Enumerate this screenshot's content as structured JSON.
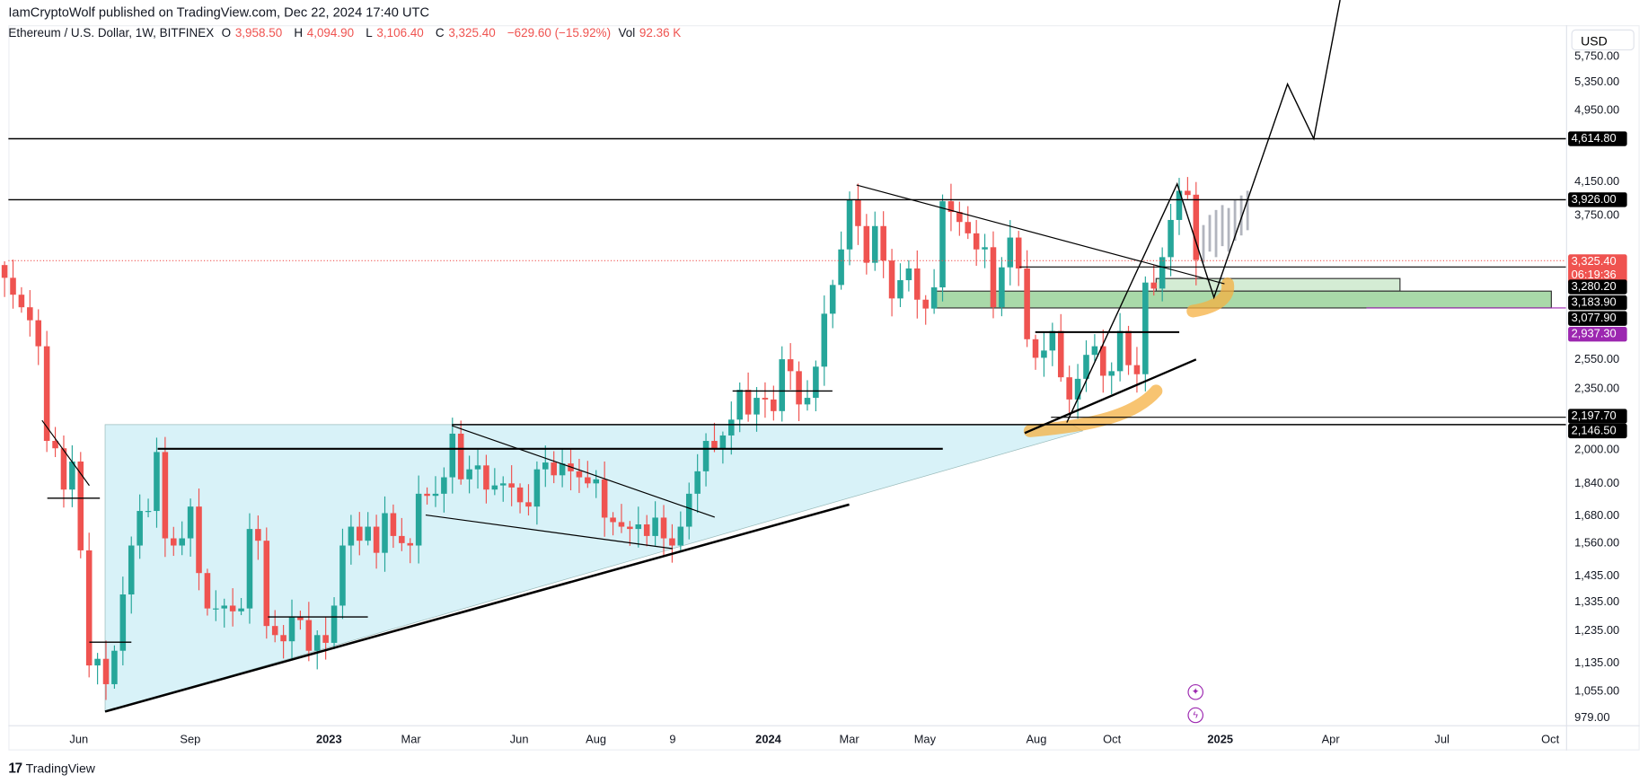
{
  "publisher_line": "IamCryptoWolf published on TradingView.com, Dec 22, 2024 17:40 UTC",
  "symbol": {
    "name": "Ethereum / U.S. Dollar, 1W, BITFINEX",
    "o_label": "O",
    "open": "3,958.50",
    "h_label": "H",
    "high": "4,094.90",
    "l_label": "L",
    "low": "3,106.40",
    "c_label": "C",
    "close": "3,325.40",
    "change": "−629.60 (−15.92%)",
    "vol_label": "Vol",
    "volume": "92.36 K"
  },
  "currency": "USD",
  "brand": "TradingView",
  "colors": {
    "up": "#26a69a",
    "down": "#ef5350",
    "tag": "#000000",
    "current": "#ef5350",
    "purple": "#9c27b0",
    "zone_light": "#d4ecd4",
    "zone_dark": "#a9d9a9",
    "triangle": "#d8f2f8",
    "highlight": "#f5b041"
  },
  "price_axis": {
    "ticks": [
      "5,750.00",
      "5,350.00",
      "4,950.00",
      "4,150.00",
      "3,750.00",
      "2,550.00",
      "2,350.00",
      "2,000.00",
      "1,840.00",
      "1,680.00",
      "1,560.00",
      "1,435.00",
      "1,335.00",
      "1,235.00",
      "1,135.00",
      "1,055.00",
      "979.00"
    ],
    "tags": [
      "4,614.80",
      "3,926.00",
      "3,280.20",
      "3,183.90",
      "3,077.90",
      "2,197.70",
      "2,146.50"
    ],
    "current_price": "3,325.40",
    "countdown": "06:19:36",
    "purple_tag": "2,937.30"
  },
  "time_axis": {
    "labels": [
      "Jun",
      "Sep",
      "2023",
      "Mar",
      "Jun",
      "Aug",
      "9",
      "2024",
      "Mar",
      "May",
      "Aug",
      "Oct",
      "2025",
      "Apr",
      "Jul",
      "Oct"
    ]
  },
  "chart_data": {
    "type": "candlestick",
    "title": "Ethereum / U.S. Dollar, 1W, BITFINEX",
    "scale": "log",
    "ylim": [
      979,
      5900
    ],
    "first_open": 3280,
    "closes": [
      3170,
      3030,
      2930,
      2830,
      2640,
      2050,
      2010,
      1800,
      1940,
      1530,
      1125,
      1145,
      1070,
      1170,
      1360,
      1550,
      1700,
      1700,
      1990,
      1580,
      1550,
      1580,
      1720,
      1440,
      1310,
      1310,
      1320,
      1300,
      1310,
      1620,
      1570,
      1250,
      1220,
      1200,
      1280,
      1270,
      1170,
      1220,
      1195,
      1320,
      1550,
      1630,
      1570,
      1630,
      1520,
      1690,
      1590,
      1560,
      1550,
      1780,
      1770,
      1780,
      1860,
      2090,
      1850,
      1900,
      1920,
      1800,
      1820,
      1830,
      1810,
      1740,
      1720,
      1900,
      1935,
      1870,
      1930,
      1890,
      1860,
      1830,
      1850,
      1670,
      1650,
      1630,
      1620,
      1640,
      1590,
      1670,
      1580,
      1550,
      1630,
      1780,
      1890,
      2050,
      2010,
      2080,
      2170,
      2350,
      2200,
      2300,
      2290,
      2220,
      2550,
      2470,
      2260,
      2300,
      2500,
      2880,
      3110,
      3420,
      3900,
      3640,
      3300,
      3640,
      3320,
      3000,
      3150,
      3250,
      2990,
      2920,
      3090,
      3890,
      3780,
      3680,
      3570,
      3420,
      3440,
      2930,
      3260,
      3530,
      3250,
      2690,
      2560,
      2610,
      2750,
      2430,
      2290,
      2420,
      2580,
      2640,
      2440,
      2470,
      2750,
      2510,
      2450,
      3130,
      3080,
      3350,
      3700,
      4000,
      3955,
      3325.4
    ],
    "last_candle": {
      "open": 3958.5,
      "high": 4094.9,
      "low": 3106.4,
      "close": 3325.4
    },
    "projection": [
      [
        3300,
        3650
      ],
      [
        3400,
        3750
      ],
      [
        3350,
        3800
      ],
      [
        3450,
        3850
      ],
      [
        3400,
        3820
      ],
      [
        3500,
        3900
      ],
      [
        3550,
        3950
      ],
      [
        3600,
        4000
      ]
    ],
    "levels": [
      4614.8,
      3926.0,
      3280.2,
      3183.9,
      3077.9,
      2937.3,
      2197.7,
      2146.5
    ]
  }
}
